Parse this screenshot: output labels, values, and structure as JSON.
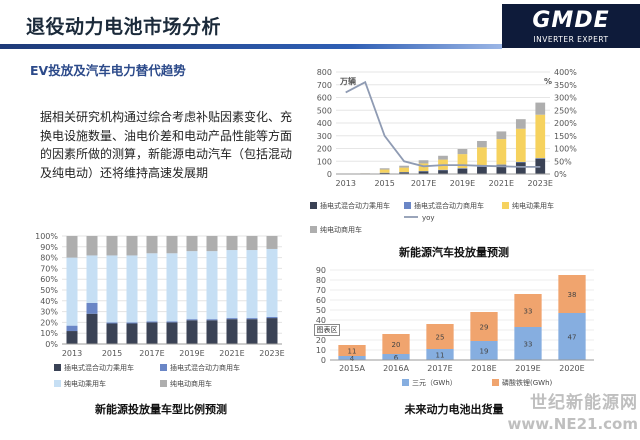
{
  "header": {
    "title": "退役动力电池市场分析"
  },
  "logo": {
    "main": "GMDE",
    "sub": "INVERTER EXPERT"
  },
  "subtitle": "EV投放及汽车电力替代趋势",
  "paragraph": "据相关研究机构通过综合考虑补贴因素变化、充换电设施数量、油电价差和电动产品性能等方面的因素所做的测算，新能源电动汽车（包括混动及纯电动）还将维持高速发展期",
  "colors": {
    "phev_passenger": "#3a4255",
    "phev_commercial": "#6a86c6",
    "bev_passenger": "#f6d25e",
    "bev_commercial": "#aeaeae",
    "ratio_bev_passenger": "#c6dff4",
    "yoy": "#8f9bb3",
    "ternary": "#86aee0",
    "lfp": "#f0a46e"
  },
  "captions": {
    "top_left": "新能源投放量车型比例预测",
    "top_right": "新能源汽车投放量预测",
    "bottom_right": "未来动力电池出货量"
  },
  "float_label": "图表区",
  "watermark": {
    "line1": "世纪新能源网",
    "line2": "www.NE21.com"
  },
  "chart_data": [
    {
      "type": "bar",
      "stacked": true,
      "title": "",
      "x": [
        2013,
        2014,
        2015,
        2016,
        2017,
        2018,
        2019,
        2020,
        2021,
        2022,
        2023
      ],
      "x_tick_labels": [
        "2013",
        "2015",
        "2017E",
        "2019E",
        "2021E",
        "2023E"
      ],
      "ylim": [
        0,
        100
      ],
      "y_tick_labels": [
        "0%",
        "10%",
        "20%",
        "30%",
        "40%",
        "50%",
        "60%",
        "70%",
        "80%",
        "90%",
        "100%"
      ],
      "series": [
        {
          "name": "插电式混合动力乘用车",
          "values": [
            12,
            28,
            19,
            19,
            20,
            20,
            22,
            22,
            23,
            23,
            24
          ]
        },
        {
          "name": "插电式混合动力商用车",
          "values": [
            5,
            10,
            1,
            1,
            1,
            1,
            1,
            1,
            1,
            1,
            1
          ]
        },
        {
          "name": "纯电动乘用车",
          "values": [
            63,
            44,
            62,
            62,
            63,
            63,
            63,
            63,
            63,
            63,
            63
          ]
        },
        {
          "name": "纯电动商用车",
          "values": [
            20,
            18,
            18,
            18,
            16,
            16,
            14,
            14,
            13,
            13,
            12
          ]
        }
      ],
      "legend": [
        "插电式混合动力乘用车",
        "插电式混合动力商用车",
        "纯电动乘用车",
        "纯电动商用车"
      ],
      "legend_position": "bottom"
    },
    {
      "type": "bar",
      "stacked": true,
      "title": "",
      "y_unit_label": "万辆",
      "y2_unit_label": "%",
      "x": [
        2013,
        2014,
        2015,
        2016,
        2017,
        2018,
        2019,
        2020,
        2021,
        2022,
        2023
      ],
      "x_tick_labels": [
        "2013",
        "2015",
        "2017E",
        "2019E",
        "2021E",
        "2023E"
      ],
      "ylim": [
        0,
        800
      ],
      "y_tick_labels": [
        "0",
        "100",
        "200",
        "300",
        "400",
        "500",
        "600",
        "700",
        "800"
      ],
      "y2lim": [
        0,
        400
      ],
      "y2_tick_labels": [
        "0%",
        "50%",
        "100%",
        "150%",
        "200%",
        "250%",
        "300%",
        "350%",
        "400%"
      ],
      "series": [
        {
          "name": "插电式混合动力乘用车",
          "values": [
            0.5,
            1,
            8,
            12,
            20,
            30,
            42,
            55,
            70,
            90,
            120
          ]
        },
        {
          "name": "插电式混合动力商用车",
          "values": [
            0.1,
            0.3,
            2,
            3,
            3,
            3,
            4,
            4,
            4,
            5,
            5
          ]
        },
        {
          "name": "纯电动乘用车",
          "values": [
            1,
            3,
            25,
            35,
            60,
            80,
            110,
            150,
            200,
            260,
            340
          ]
        },
        {
          "name": "纯电动商用车",
          "values": [
            0.5,
            1,
            10,
            15,
            25,
            30,
            40,
            50,
            60,
            75,
            95
          ]
        }
      ],
      "line_series": {
        "name": "yoy",
        "axis": "right",
        "values": [
          320,
          360,
          150,
          50,
          30,
          35,
          35,
          32,
          30,
          28,
          28
        ]
      },
      "legend": [
        "插电式混合动力乘用车",
        "插电式混合动力商用车",
        "纯电动乘用车",
        "yoy",
        "纯电动商用车"
      ],
      "legend_position": "bottom"
    },
    {
      "type": "bar",
      "stacked": true,
      "title": "",
      "categories": [
        "2015A",
        "2016A",
        "2017E",
        "2018E",
        "2019E",
        "2020E"
      ],
      "ylim": [
        0,
        90
      ],
      "y_tick_labels": [
        "0",
        "10",
        "20",
        "30",
        "40",
        "50",
        "60",
        "70",
        "80",
        "90"
      ],
      "series": [
        {
          "name": "三元（GWh）",
          "values": [
            4,
            6,
            11,
            19,
            33,
            47
          ]
        },
        {
          "name": "磷酸铁锂(GWh)",
          "values": [
            11,
            20,
            25,
            29,
            33,
            38
          ]
        }
      ],
      "legend": [
        "三元（GWh）",
        "磷酸铁锂(GWh)"
      ],
      "legend_position": "bottom"
    }
  ]
}
